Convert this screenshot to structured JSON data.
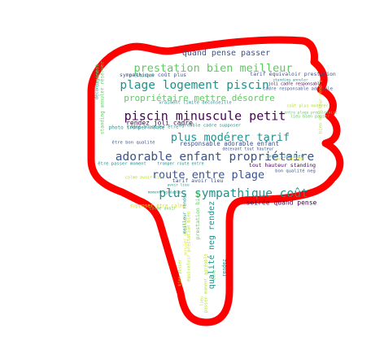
{
  "palette": {
    "outline": "#ff0000",
    "fill": "#ffffff",
    "purple": "#440154",
    "indigo": "#3b528b",
    "teal": "#21918c",
    "green": "#5ec962",
    "lime": "#b5de2b",
    "yellow": "#e4e30f"
  },
  "words": [
    {
      "text": "quand pense passer",
      "color": "indigo"
    },
    {
      "text": "prestation bien meilleur",
      "color": "green"
    },
    {
      "text": "plage logement piscin",
      "color": "teal"
    },
    {
      "text": "propriétaire mettre désordre",
      "color": "green"
    },
    {
      "text": "piscin minuscule petit",
      "color": "purple"
    },
    {
      "text": "plus modérer tarif",
      "color": "teal"
    },
    {
      "text": "rendez joli cadre",
      "color": "purple"
    },
    {
      "text": "adorable enfant propriétaire",
      "color": "indigo"
    },
    {
      "text": "route entre plage",
      "color": "indigo"
    },
    {
      "text": "plus sympathique coût",
      "color": "teal"
    },
    {
      "text": "soirée quand pense",
      "color": "purple"
    },
    {
      "text": "responsable adorable enfant",
      "color": "indigo"
    },
    {
      "text": "sympathique coût plus",
      "color": "indigo"
    },
    {
      "text": "tarif équivaloir prestation",
      "color": "indigo"
    },
    {
      "text": "vraiment limite déconseille",
      "color": "teal"
    },
    {
      "text": "photo tromper route",
      "color": "teal"
    },
    {
      "text": "être bon qualité",
      "color": "indigo"
    },
    {
      "text": "agréable cadre supposer",
      "color": "teal"
    },
    {
      "text": "tout hauteur standing",
      "color": "purple"
    },
    {
      "text": "bon qualité neg",
      "color": "indigo"
    },
    {
      "text": "tarif avoir lieu",
      "color": "indigo"
    },
    {
      "text": "qualité neg rendez",
      "color": "teal"
    },
    {
      "text": "supposer être calme",
      "color": "yellow"
    },
    {
      "text": "standing annuler réserver",
      "color": "green"
    },
    {
      "text": "prestation bien",
      "color": "green"
    },
    {
      "text": "être passer moment",
      "color": "teal"
    },
    {
      "text": "tromper route entre",
      "color": "teal"
    },
    {
      "text": "décevant tout hauteur",
      "color": "indigo"
    },
    {
      "text": "cadre supposer être",
      "color": "teal"
    },
    {
      "text": "cadre responsable adorable",
      "color": "indigo"
    },
    {
      "text": "coût plus modérer",
      "color": "lime"
    },
    {
      "text": "entre plage propriétaire",
      "color": "green"
    },
    {
      "text": "équivaloir prestation bien",
      "color": "lime"
    },
    {
      "text": "passer moment agréable",
      "color": "lime"
    },
    {
      "text": "calme avoir lieu",
      "color": "lime"
    },
    {
      "text": "bien meilleur rendez",
      "color": "lime"
    },
    {
      "text": "tout hauteur",
      "color": "yellow"
    },
    {
      "text": "avoir lieu bien",
      "color": "teal"
    },
    {
      "text": "lieu bien passer",
      "color": "green"
    },
    {
      "text": "calme avoir",
      "color": "green"
    },
    {
      "text": "annuler réserver",
      "color": "yellow"
    },
    {
      "text": "joli cadre responsable",
      "color": "purple"
    },
    {
      "text": "standing annuler",
      "color": "teal"
    },
    {
      "text": "moment agréable",
      "color": "teal"
    },
    {
      "text": "bien passer",
      "color": "lime"
    },
    {
      "text": "déconseille",
      "color": "teal"
    },
    {
      "text": "meilleur rendez",
      "color": "teal"
    },
    {
      "text": "logement",
      "color": "green"
    },
    {
      "text": "avoir lieu",
      "color": "teal"
    },
    {
      "text": "prestation",
      "color": "teal"
    },
    {
      "text": "lieu",
      "color": "lime"
    },
    {
      "text": "être",
      "color": "green"
    },
    {
      "text": "rendez",
      "color": "teal"
    }
  ]
}
